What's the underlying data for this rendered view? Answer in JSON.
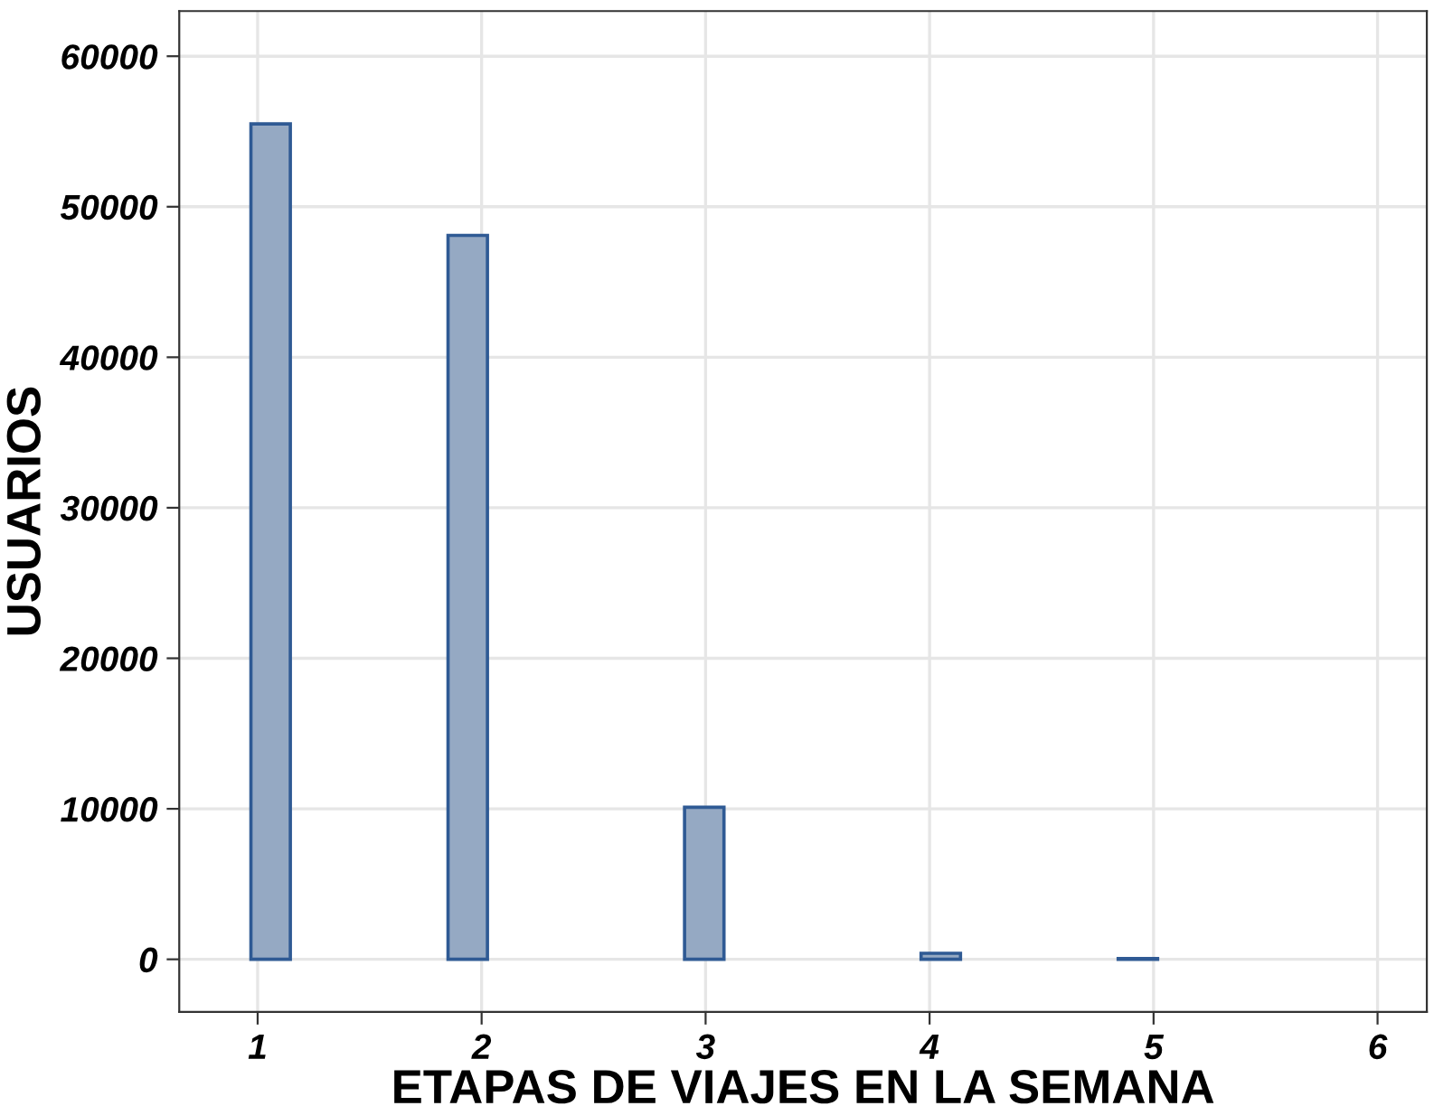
{
  "chart_data": {
    "type": "histogram",
    "xlabel": "ETAPAS DE VIAJES EN LA SEMANA",
    "ylabel": "USUARIOS",
    "bins": [
      0.97,
      1.146,
      1.322,
      1.498,
      1.674,
      1.85,
      2.026,
      2.202,
      2.378,
      2.554,
      2.73,
      2.906,
      3.082,
      3.258,
      3.434,
      3.61,
      3.786,
      3.962,
      4.138,
      4.314,
      4.49,
      4.666,
      4.842,
      5.018,
      5.194,
      5.37,
      5.546,
      5.722,
      5.898
    ],
    "values": [
      55500,
      0,
      0,
      0,
      0,
      48100,
      0,
      0,
      0,
      0,
      0,
      10100,
      0,
      0,
      0,
      0,
      0,
      400,
      0,
      0,
      0,
      0,
      50,
      0,
      0,
      0,
      0,
      0
    ],
    "color": "#95a9c3",
    "xlim": [
      0.65,
      6.22
    ],
    "xticks": [
      1,
      2,
      3,
      4,
      5,
      6
    ],
    "ylim": [
      -3500,
      63000
    ],
    "yticks": [
      0,
      10000,
      20000,
      30000,
      40000,
      50000,
      60000
    ],
    "grid": true
  }
}
